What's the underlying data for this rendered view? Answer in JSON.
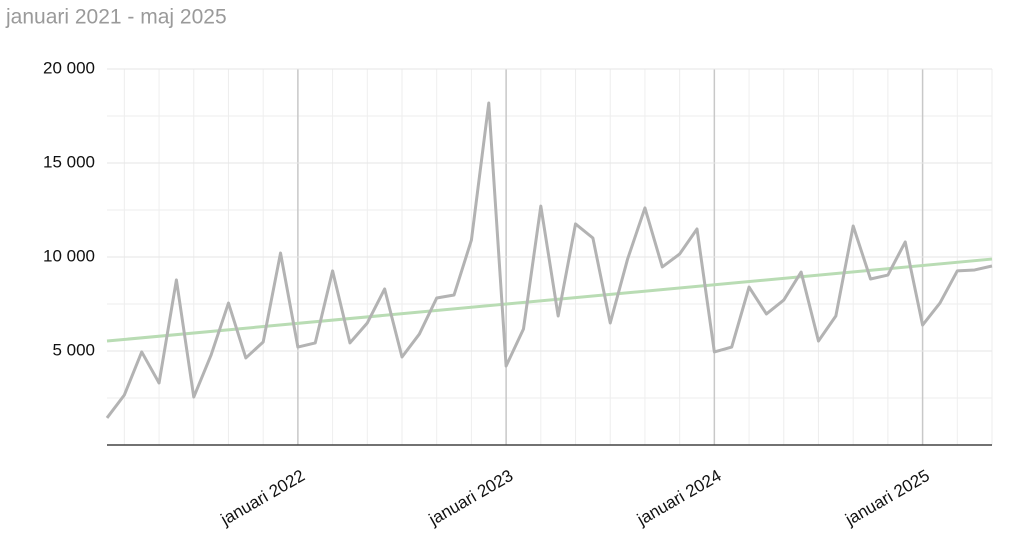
{
  "chart_data": {
    "type": "line",
    "title": "januari 2021 - maj 2025",
    "categories": [
      null,
      null,
      null,
      null,
      null,
      null,
      null,
      null,
      null,
      null,
      null,
      "januari 2022",
      null,
      null,
      null,
      null,
      null,
      null,
      null,
      null,
      null,
      null,
      null,
      "januari 2023",
      null,
      null,
      null,
      null,
      null,
      null,
      null,
      null,
      null,
      null,
      null,
      "januari 2024",
      null,
      null,
      null,
      null,
      null,
      null,
      null,
      null,
      null,
      null,
      null,
      "januari 2025",
      null,
      null,
      null,
      null
    ],
    "series": [
      {
        "color": "#b3b3b3",
        "values": [
          1440,
          2660,
          4950,
          3300,
          8780,
          2550,
          4790,
          7550,
          4630,
          5480,
          10210,
          5210,
          5430,
          9260,
          5430,
          6490,
          8300,
          4680,
          5900,
          7820,
          7980,
          10900,
          18190,
          4200,
          6170,
          12710,
          6860,
          11760,
          11010,
          6490,
          9890,
          12610,
          9470,
          10160,
          11490,
          4950,
          5210,
          8400,
          6970,
          7710,
          9200,
          5530,
          6860,
          11650,
          8830,
          9040,
          10800,
          6380,
          7550,
          9260,
          9310,
          9520
        ]
      }
    ],
    "trend": {
      "color": "#b9dcb4",
      "start": 5530,
      "end": 9890
    },
    "ylim": [
      0,
      20000
    ],
    "yticks": [
      {
        "value": 5000,
        "label": "5 000"
      },
      {
        "value": 10000,
        "label": "10 000"
      },
      {
        "value": 15000,
        "label": "15 000"
      },
      {
        "value": 20000,
        "label": "20 000"
      }
    ],
    "grid": true
  }
}
